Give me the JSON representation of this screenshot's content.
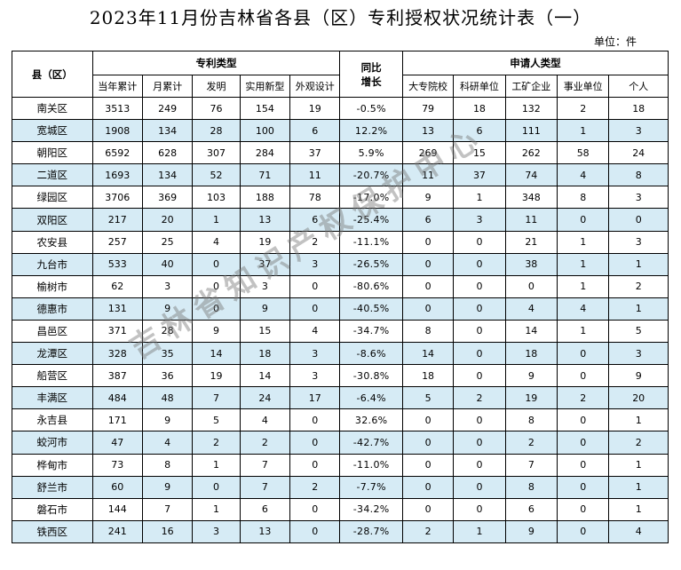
{
  "title": "2023年11月份吉林省各县（区）专利授权状况统计表（一）",
  "unit": "单位：件",
  "header": {
    "county": "县（区）",
    "patent_type": "专利类型",
    "growth": "同比\n增长",
    "applicant_type": "申请人类型",
    "columns": [
      "当年累计",
      "月累计",
      "发明",
      "实用新型",
      "外观设计",
      "大专院校",
      "科研单位",
      "工矿企业",
      "事业单位",
      "个人"
    ]
  },
  "rows": [
    {
      "name": "南关区",
      "cells": [
        "3513",
        "249",
        "76",
        "154",
        "19",
        "-0.5%",
        "79",
        "18",
        "132",
        "2",
        "18"
      ]
    },
    {
      "name": "宽城区",
      "cells": [
        "1908",
        "134",
        "28",
        "100",
        "6",
        "12.2%",
        "13",
        "6",
        "111",
        "1",
        "3"
      ]
    },
    {
      "name": "朝阳区",
      "cells": [
        "6592",
        "628",
        "307",
        "284",
        "37",
        "5.9%",
        "269",
        "15",
        "262",
        "58",
        "24"
      ]
    },
    {
      "name": "二道区",
      "cells": [
        "1693",
        "134",
        "52",
        "71",
        "11",
        "-20.7%",
        "11",
        "37",
        "74",
        "4",
        "8"
      ]
    },
    {
      "name": "绿园区",
      "cells": [
        "3706",
        "369",
        "103",
        "188",
        "78",
        "-17.0%",
        "9",
        "1",
        "348",
        "8",
        "3"
      ]
    },
    {
      "name": "双阳区",
      "cells": [
        "217",
        "20",
        "1",
        "13",
        "6",
        "-25.4%",
        "6",
        "3",
        "11",
        "0",
        "0"
      ]
    },
    {
      "name": "农安县",
      "cells": [
        "257",
        "25",
        "4",
        "19",
        "2",
        "-11.1%",
        "0",
        "0",
        "21",
        "1",
        "3"
      ]
    },
    {
      "name": "九台市",
      "cells": [
        "533",
        "40",
        "0",
        "37",
        "3",
        "-26.5%",
        "0",
        "0",
        "38",
        "1",
        "1"
      ]
    },
    {
      "name": "榆树市",
      "cells": [
        "62",
        "3",
        "0",
        "3",
        "0",
        "-80.6%",
        "0",
        "0",
        "0",
        "1",
        "2"
      ]
    },
    {
      "name": "德惠市",
      "cells": [
        "131",
        "9",
        "0",
        "9",
        "0",
        "-40.5%",
        "0",
        "0",
        "4",
        "4",
        "1"
      ]
    },
    {
      "name": "昌邑区",
      "cells": [
        "371",
        "28",
        "9",
        "15",
        "4",
        "-34.7%",
        "8",
        "0",
        "14",
        "1",
        "5"
      ]
    },
    {
      "name": "龙潭区",
      "cells": [
        "328",
        "35",
        "14",
        "18",
        "3",
        "-8.6%",
        "14",
        "0",
        "18",
        "0",
        "3"
      ]
    },
    {
      "name": "船营区",
      "cells": [
        "387",
        "36",
        "19",
        "14",
        "3",
        "-30.8%",
        "18",
        "0",
        "9",
        "0",
        "9"
      ]
    },
    {
      "name": "丰满区",
      "cells": [
        "484",
        "48",
        "7",
        "24",
        "17",
        "-6.4%",
        "5",
        "2",
        "19",
        "2",
        "20"
      ]
    },
    {
      "name": "永吉县",
      "cells": [
        "171",
        "9",
        "5",
        "4",
        "0",
        "32.6%",
        "0",
        "0",
        "8",
        "0",
        "1"
      ]
    },
    {
      "name": "蛟河市",
      "cells": [
        "47",
        "4",
        "2",
        "2",
        "0",
        "-42.7%",
        "0",
        "0",
        "2",
        "0",
        "2"
      ]
    },
    {
      "name": "桦甸市",
      "cells": [
        "73",
        "8",
        "1",
        "7",
        "0",
        "-11.0%",
        "0",
        "0",
        "7",
        "0",
        "1"
      ]
    },
    {
      "name": "舒兰市",
      "cells": [
        "60",
        "9",
        "0",
        "7",
        "2",
        "-7.7%",
        "0",
        "0",
        "8",
        "0",
        "1"
      ]
    },
    {
      "name": "磐石市",
      "cells": [
        "144",
        "7",
        "1",
        "6",
        "0",
        "-34.2%",
        "0",
        "0",
        "6",
        "0",
        "1"
      ]
    },
    {
      "name": "铁西区",
      "cells": [
        "241",
        "16",
        "3",
        "13",
        "0",
        "-28.7%",
        "2",
        "1",
        "9",
        "0",
        "4"
      ]
    }
  ],
  "watermark": "吉林省知识产权保护中心",
  "colors": {
    "alt_row": "#d6ebf5",
    "border": "#000000"
  }
}
